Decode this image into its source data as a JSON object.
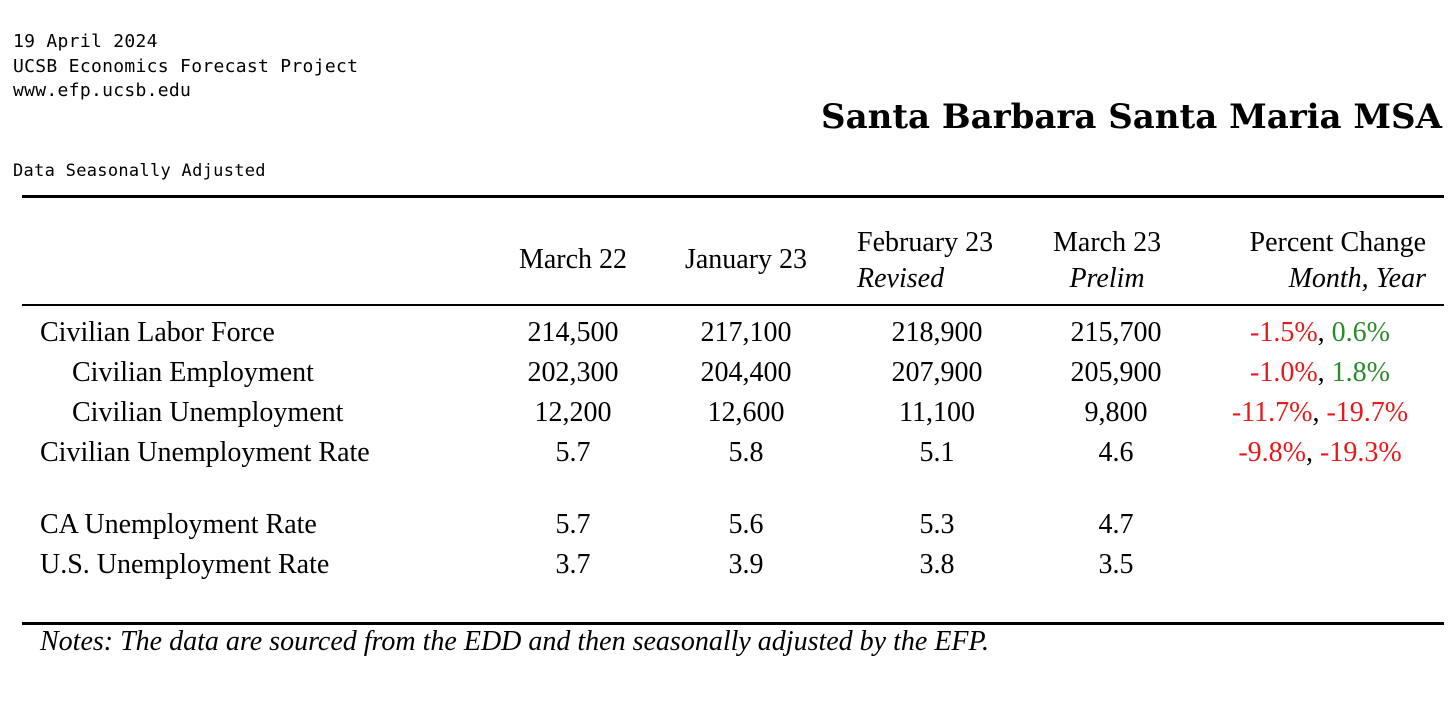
{
  "header": {
    "date": "19 April 2024",
    "organization": "UCSB Economics Forecast Project",
    "website": "www.efp.ucsb.edu",
    "region": "Santa Barbara Santa Maria MSA",
    "adjustment_note": "Data Seasonally Adjusted"
  },
  "table": {
    "columns": [
      {
        "label": "March 22",
        "sub": ""
      },
      {
        "label": "January 23",
        "sub": ""
      },
      {
        "label": "February 23",
        "sub": "Revised"
      },
      {
        "label": "March 23",
        "sub": "Prelim"
      },
      {
        "label": "Percent Change",
        "sub": "Month, Year"
      }
    ],
    "rows": [
      {
        "label": "Civilian Labor Force",
        "values": [
          "214,500",
          "217,100",
          "218,900",
          "215,700"
        ],
        "month_change": "-1.5%",
        "year_change": "0.6%"
      },
      {
        "label": "Civilian Employment",
        "values": [
          "202,300",
          "204,400",
          "207,900",
          "205,900"
        ],
        "month_change": "-1.0%",
        "year_change": "1.8%"
      },
      {
        "label": "Civilian Unemployment",
        "values": [
          "12,200",
          "12,600",
          "11,100",
          "9,800"
        ],
        "month_change": "-11.7%",
        "year_change": "-19.7%"
      },
      {
        "label": "Civilian Unemployment Rate",
        "values": [
          "5.7",
          "5.8",
          "5.1",
          "4.6"
        ],
        "month_change": "-9.8%",
        "year_change": "-19.3%"
      },
      {
        "label": "CA Unemployment Rate",
        "values": [
          "5.7",
          "5.6",
          "5.3",
          "4.7"
        ],
        "month_change": "",
        "year_change": ""
      },
      {
        "label": "U.S. Unemployment Rate",
        "values": [
          "3.7",
          "3.9",
          "3.8",
          "3.5"
        ],
        "month_change": "",
        "year_change": ""
      }
    ],
    "change_separator": ", "
  },
  "notes": "Notes: The data are sourced from the EDD and then seasonally adjusted by the EFP.",
  "colors": {
    "negative": "#e8191b",
    "positive": "#2b8a2b"
  }
}
